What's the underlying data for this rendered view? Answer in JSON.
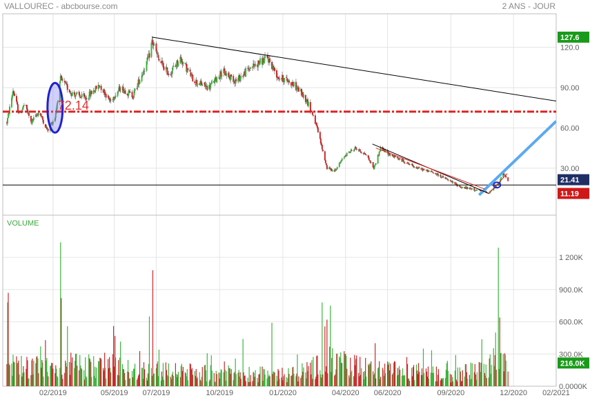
{
  "header": {
    "title": "VALLOUREC - abcbourse.com",
    "period": "2 ANS - JOUR"
  },
  "colors": {
    "up": "#3cb43c",
    "down": "#c82828",
    "resistance_line": "#e02020",
    "support_line": "#000000",
    "trend_blue": "#5aaaf0",
    "ellipse": "#2020d0",
    "tag_last": "#1a9a1a",
    "tag_current": "#1f2f66",
    "tag_min": "#d01818",
    "grid": "#e4e4e4"
  },
  "chart_data": [
    {
      "type": "candlestick",
      "panel": "price",
      "title": "VALLOUREC - abcbourse.com",
      "x_ticks": [
        "02/2019",
        "05/2019",
        "07/2019",
        "10/2019",
        "01/2020",
        "04/2020",
        "06/2020",
        "09/2020",
        "12/2020",
        "02/2021"
      ],
      "y_ticks": [
        30.0,
        60.0,
        90.0,
        120.0
      ],
      "y_tick_labels": [
        "30.00",
        "60.00",
        "90.00",
        "120.0"
      ],
      "ylim": [
        -5,
        145
      ],
      "grid": true,
      "price_tags": [
        {
          "label": "127.6",
          "value": 127.6,
          "kind": "last"
        },
        {
          "label": "21.41",
          "value": 21.41,
          "kind": "current"
        },
        {
          "label": "11.19",
          "value": 11.19,
          "kind": "min"
        }
      ],
      "horizontal_lines": [
        {
          "value": 72.14,
          "style": "dash-dot",
          "kind": "resistance_line"
        },
        {
          "value": 17.5,
          "style": "solid",
          "kind": "support_line"
        }
      ],
      "annotations": [
        {
          "text": "72.14",
          "x": "2019-02-06",
          "y": 72.14
        }
      ],
      "trendlines": [
        {
          "kind": "support_line",
          "points": [
            [
              "2019-06-25",
              127.6
            ],
            [
              "2021-02-01",
              80.0
            ]
          ]
        },
        {
          "kind": "trend_blue",
          "points": [
            [
              "2020-10-12",
              10.0
            ],
            [
              "2021-02-01",
              65.0
            ]
          ]
        },
        {
          "kind": "support_line",
          "points": [
            [
              "2020-05-10",
              48.0
            ],
            [
              "2020-10-26",
              11.19
            ]
          ]
        },
        {
          "kind": "resistance_line",
          "points": [
            [
              "2020-05-15",
              45.0
            ],
            [
              "2020-10-20",
              14.5
            ]
          ]
        },
        {
          "kind": "resistance_line",
          "points": [
            [
              "2020-10-26",
              11.19
            ],
            [
              "2020-11-22",
              26.0
            ]
          ]
        }
      ],
      "ellipses": [
        {
          "center": [
            "2019-02-04",
            75.0
          ],
          "kind": "ellipse"
        },
        {
          "center": [
            "2020-11-07",
            17.5
          ],
          "kind": "ellipse"
        }
      ],
      "ohlc_keyframes": [
        [
          "2018-11-26",
          64.0
        ],
        [
          "2018-12-05",
          88.0
        ],
        [
          "2018-12-14",
          70.0
        ],
        [
          "2018-12-22",
          78.0
        ],
        [
          "2018-12-31",
          64.0
        ],
        [
          "2019-01-12",
          72.0
        ],
        [
          "2019-01-24",
          58.0
        ],
        [
          "2019-02-04",
          68.0
        ],
        [
          "2019-02-12",
          96.0
        ],
        [
          "2019-02-28",
          86.0
        ],
        [
          "2019-03-20",
          82.0
        ],
        [
          "2019-04-10",
          92.0
        ],
        [
          "2019-04-25",
          80.0
        ],
        [
          "2019-05-10",
          90.0
        ],
        [
          "2019-05-28",
          84.0
        ],
        [
          "2019-06-10",
          100.0
        ],
        [
          "2019-06-20",
          112.0
        ],
        [
          "2019-06-25",
          125.0
        ],
        [
          "2019-07-05",
          110.0
        ],
        [
          "2019-07-20",
          100.0
        ],
        [
          "2019-08-05",
          112.0
        ],
        [
          "2019-08-25",
          95.0
        ],
        [
          "2019-09-15",
          90.0
        ],
        [
          "2019-10-05",
          102.0
        ],
        [
          "2019-10-25",
          95.0
        ],
        [
          "2019-11-15",
          105.0
        ],
        [
          "2019-12-10",
          112.0
        ],
        [
          "2019-12-25",
          98.0
        ],
        [
          "2020-01-10",
          95.0
        ],
        [
          "2020-01-25",
          88.0
        ],
        [
          "2020-02-05",
          80.0
        ],
        [
          "2020-02-15",
          68.0
        ],
        [
          "2020-02-22",
          55.0
        ],
        [
          "2020-03-05",
          30.0
        ],
        [
          "2020-03-16",
          28.0
        ],
        [
          "2020-04-01",
          40.0
        ],
        [
          "2020-04-15",
          45.0
        ],
        [
          "2020-05-01",
          40.0
        ],
        [
          "2020-05-12",
          30.0
        ],
        [
          "2020-05-22",
          45.0
        ],
        [
          "2020-06-05",
          40.0
        ],
        [
          "2020-06-25",
          35.0
        ],
        [
          "2020-07-15",
          30.0
        ],
        [
          "2020-08-05",
          27.0
        ],
        [
          "2020-08-25",
          22.0
        ],
        [
          "2020-09-15",
          16.0
        ],
        [
          "2020-10-05",
          14.0
        ],
        [
          "2020-10-26",
          12.0
        ],
        [
          "2020-11-09",
          18.0
        ],
        [
          "2020-11-16",
          26.0
        ],
        [
          "2020-11-23",
          21.4
        ]
      ]
    },
    {
      "type": "bar",
      "panel": "volume",
      "title": "VOLUME",
      "y_ticks": [
        0,
        300000,
        600000,
        900000,
        1200000
      ],
      "y_tick_labels": [
        "0.0000K",
        "300.0K",
        "600.0K",
        "900.0K",
        "1 200K"
      ],
      "ylim": [
        0,
        1400000
      ],
      "price_tags": [
        {
          "label": "216.0K",
          "value": 216000,
          "kind": "last"
        }
      ],
      "volume_keyframes": [
        [
          "2018-11-26",
          200000
        ],
        [
          "2019-01-15",
          180000
        ],
        [
          "2019-02-10",
          220000
        ],
        [
          "2019-06-15",
          160000
        ],
        [
          "2019-10-01",
          130000
        ],
        [
          "2020-01-15",
          120000
        ],
        [
          "2020-03-10",
          250000
        ],
        [
          "2020-05-01",
          180000
        ],
        [
          "2020-09-01",
          110000
        ],
        [
          "2020-10-20",
          180000
        ],
        [
          "2020-11-23",
          300000
        ]
      ],
      "volume_spikes": [
        [
          "2018-11-27",
          780000
        ],
        [
          "2018-11-28",
          870000
        ],
        [
          "2019-02-12",
          1340000
        ],
        [
          "2019-02-13",
          820000
        ],
        [
          "2019-06-26",
          1080000
        ],
        [
          "2019-06-21",
          650000
        ],
        [
          "2019-04-30",
          560000
        ],
        [
          "2019-12-16",
          590000
        ],
        [
          "2020-02-27",
          780000
        ],
        [
          "2020-03-10",
          750000
        ],
        [
          "2020-03-05",
          620000
        ],
        [
          "2019-11-04",
          440000
        ],
        [
          "2020-11-09",
          1290000
        ],
        [
          "2020-11-08",
          940000
        ],
        [
          "2020-11-11",
          640000
        ],
        [
          "2020-11-05",
          500000
        ]
      ]
    }
  ]
}
